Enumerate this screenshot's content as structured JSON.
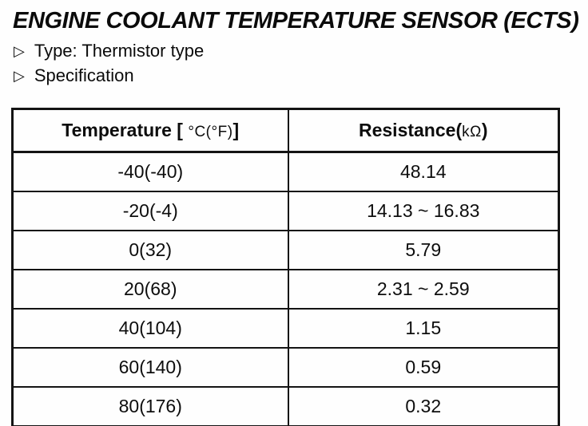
{
  "doc": {
    "title": "ENGINE COOLANT TEMPERATURE SENSOR (ECTS)",
    "bullets": [
      {
        "marker": "▷",
        "text": "Type: Thermistor type"
      },
      {
        "marker": "▷",
        "text": "Specification"
      }
    ]
  },
  "table": {
    "header_temperature": {
      "pre": "Temperature [ ",
      "unit": "°C(°F)",
      "post": "]"
    },
    "header_resistance": {
      "pre": "Resistance(",
      "unit": "kΩ",
      "post": ")"
    },
    "rows": [
      {
        "temperature": "-40(-40)",
        "resistance": "48.14"
      },
      {
        "temperature": "-20(-4)",
        "resistance": "14.13 ~ 16.83"
      },
      {
        "temperature": "0(32)",
        "resistance": "5.79"
      },
      {
        "temperature": "20(68)",
        "resistance": "2.31 ~ 2.59"
      },
      {
        "temperature": "40(104)",
        "resistance": "1.15"
      },
      {
        "temperature": "60(140)",
        "resistance": "0.59"
      },
      {
        "temperature": "80(176)",
        "resistance": "0.32"
      }
    ]
  },
  "colors": {
    "paper": "#fefefe",
    "ink": "#0d0d0d"
  }
}
